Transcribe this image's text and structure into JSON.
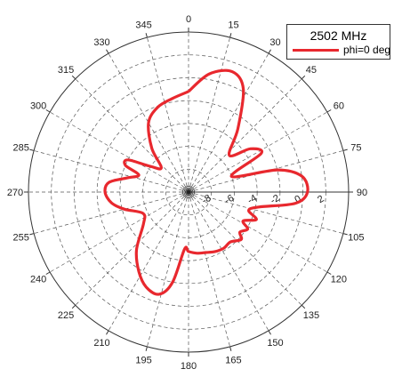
{
  "chart_data": {
    "type": "polar",
    "title": "",
    "legend": {
      "placement": "top-right",
      "title": "2502 MHz",
      "entries": [
        {
          "name": "phi=0 deg",
          "color": "#e8282e"
        }
      ]
    },
    "angle_ticks": [
      "0",
      "15",
      "30",
      "45",
      "60",
      "75",
      "90",
      "105",
      "120",
      "135",
      "150",
      "165",
      "180",
      "195",
      "210",
      "225",
      "240",
      "255",
      "270",
      "285",
      "300",
      "315",
      "330",
      "345"
    ],
    "radial_ticks": [
      "-8",
      "-6",
      "-4",
      "-2",
      "0",
      "2"
    ],
    "radial_range": [
      -10,
      4
    ],
    "angle_direction": "clockwise",
    "zero_angle": "top",
    "grid": true,
    "series": [
      {
        "name": "phi=0 deg",
        "color": "#e8282e",
        "points": [
          {
            "theta": 0,
            "r": -1.2
          },
          {
            "theta": 10,
            "r": 0.5
          },
          {
            "theta": 20,
            "r": 1.2
          },
          {
            "theta": 28,
            "r": 0.2
          },
          {
            "theta": 38,
            "r": -3.0
          },
          {
            "theta": 48,
            "r": -5.2
          },
          {
            "theta": 55,
            "r": -3.4
          },
          {
            "theta": 62,
            "r": -2.8
          },
          {
            "theta": 70,
            "r": -6.0
          },
          {
            "theta": 76,
            "r": -2.0
          },
          {
            "theta": 82,
            "r": 0.0
          },
          {
            "theta": 90,
            "r": 0.4
          },
          {
            "theta": 96,
            "r": -0.6
          },
          {
            "theta": 102,
            "r": -3.7
          },
          {
            "theta": 107,
            "r": -4.5
          },
          {
            "theta": 112,
            "r": -3.6
          },
          {
            "theta": 118,
            "r": -4.6
          },
          {
            "theta": 122,
            "r": -3.9
          },
          {
            "theta": 128,
            "r": -4.3
          },
          {
            "theta": 132,
            "r": -3.8
          },
          {
            "theta": 140,
            "r": -4.3
          },
          {
            "theta": 148,
            "r": -4.2
          },
          {
            "theta": 156,
            "r": -4.3
          },
          {
            "theta": 164,
            "r": -4.5
          },
          {
            "theta": 172,
            "r": -4.6
          },
          {
            "theta": 180,
            "r": -4.8
          },
          {
            "theta": 184,
            "r": -5.0
          },
          {
            "theta": 190,
            "r": -2.0
          },
          {
            "theta": 196,
            "r": -0.7
          },
          {
            "theta": 204,
            "r": -0.9
          },
          {
            "theta": 212,
            "r": -1.8
          },
          {
            "theta": 222,
            "r": -3.2
          },
          {
            "theta": 235,
            "r": -5.2
          },
          {
            "theta": 245,
            "r": -5.6
          },
          {
            "theta": 255,
            "r": -4.2
          },
          {
            "theta": 262,
            "r": -3.2
          },
          {
            "theta": 270,
            "r": -2.7
          },
          {
            "theta": 277,
            "r": -3.0
          },
          {
            "theta": 283,
            "r": -4.5
          },
          {
            "theta": 289,
            "r": -5.4
          },
          {
            "theta": 293,
            "r": -4.0
          },
          {
            "theta": 298,
            "r": -4.0
          },
          {
            "theta": 304,
            "r": -6.0
          },
          {
            "theta": 312,
            "r": -6.8
          },
          {
            "theta": 320,
            "r": -5.0
          },
          {
            "theta": 330,
            "r": -3.0
          },
          {
            "theta": 340,
            "r": -2.1
          },
          {
            "theta": 350,
            "r": -1.7
          },
          {
            "theta": 360,
            "r": -1.2
          }
        ]
      }
    ]
  }
}
